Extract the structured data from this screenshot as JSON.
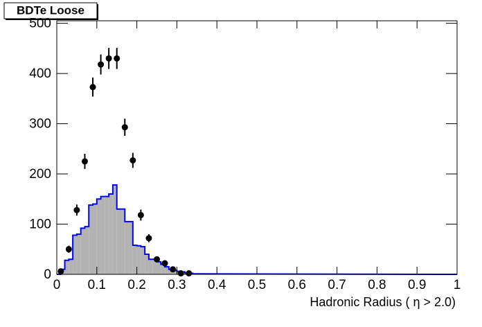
{
  "chart_data": {
    "type": "histogram",
    "title": "BDTe Loose",
    "x_label": "Hadronic Radius ( η > 2.0)",
    "xlim": [
      0,
      1
    ],
    "xticks": [
      0,
      0.1,
      0.2,
      0.3,
      0.4,
      0.5,
      0.6,
      0.7,
      0.8,
      0.9,
      1
    ],
    "ylim": [
      0,
      505
    ],
    "yticks": [
      0,
      100,
      200,
      300,
      400,
      500
    ],
    "histogram": {
      "color": "#0000ff",
      "fill": "#b3b3b3",
      "bins": [
        0,
        0.01,
        0.02,
        0.03,
        0.04,
        0.05,
        0.06,
        0.07,
        0.08,
        0.09,
        0.1,
        0.11,
        0.12,
        0.13,
        0.14,
        0.15,
        0.16,
        0.17,
        0.18,
        0.19,
        0.2,
        0.21,
        0.22,
        0.23,
        0.24,
        0.25,
        0.26,
        0.27,
        0.28,
        0.29,
        0.3,
        0.31,
        0.32,
        0.33,
        0.34,
        0.35
      ],
      "counts": [
        0,
        10,
        28,
        30,
        78,
        80,
        92,
        95,
        138,
        140,
        150,
        155,
        155,
        160,
        178,
        130,
        130,
        105,
        105,
        58,
        57,
        55,
        40,
        30,
        30,
        25,
        20,
        15,
        10,
        8,
        6,
        5,
        3,
        2,
        1
      ]
    },
    "points": {
      "color": "#000000",
      "x": [
        0.01,
        0.03,
        0.05,
        0.07,
        0.09,
        0.11,
        0.13,
        0.15,
        0.17,
        0.19,
        0.21,
        0.23,
        0.25,
        0.27,
        0.29,
        0.31,
        0.33
      ],
      "values": [
        6,
        50,
        128,
        225,
        373,
        418,
        430,
        430,
        293,
        227,
        118,
        72,
        30,
        22,
        10,
        2,
        2
      ],
      "errors": [
        3,
        7,
        11,
        15,
        19,
        20,
        21,
        21,
        17,
        15,
        11,
        8,
        5,
        5,
        3,
        2,
        1
      ]
    }
  }
}
